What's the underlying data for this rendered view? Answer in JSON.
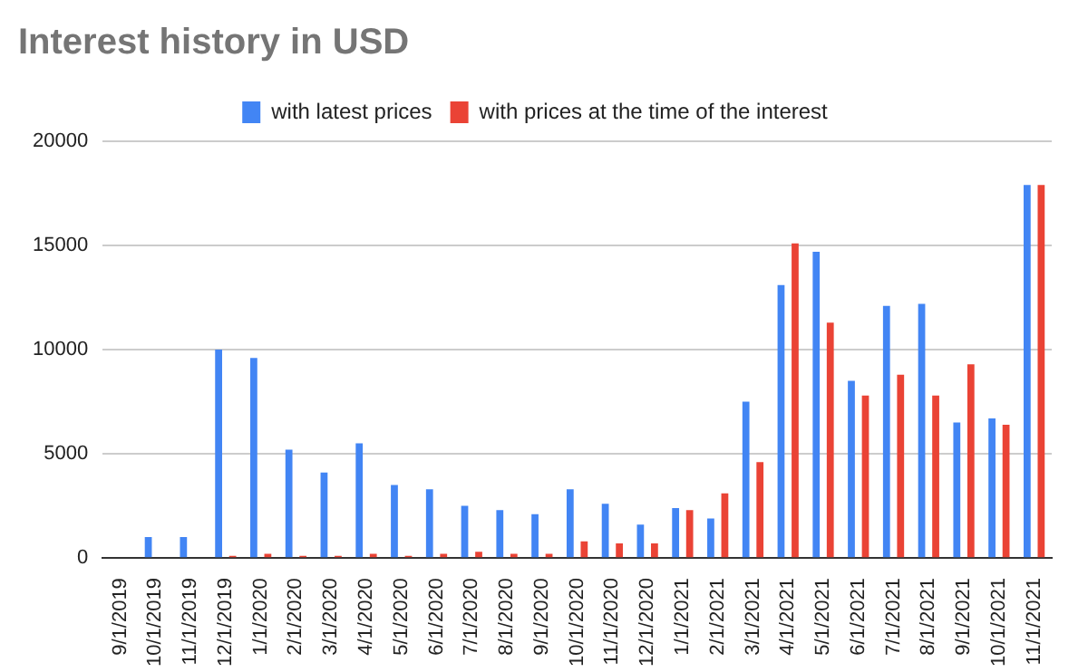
{
  "chart_data": {
    "type": "bar",
    "title": "Interest history in USD",
    "categories": [
      "9/1/2019",
      "10/1/2019",
      "11/1/2019",
      "12/1/2019",
      "1/1/2020",
      "2/1/2020",
      "3/1/2020",
      "4/1/2020",
      "5/1/2020",
      "6/1/2020",
      "7/1/2020",
      "8/1/2020",
      "9/1/2020",
      "10/1/2020",
      "11/1/2020",
      "12/1/2020",
      "1/1/2021",
      "2/1/2021",
      "3/1/2021",
      "4/1/2021",
      "5/1/2021",
      "6/1/2021",
      "7/1/2021",
      "8/1/2021",
      "9/1/2021",
      "10/1/2021",
      "11/1/2021"
    ],
    "series": [
      {
        "name": "with latest prices",
        "color": "#4285f4",
        "values": [
          0,
          1000,
          1000,
          10000,
          9600,
          5200,
          4100,
          5500,
          3500,
          3300,
          2500,
          2300,
          2100,
          3300,
          2600,
          1600,
          2400,
          1900,
          7500,
          13100,
          14700,
          8500,
          12100,
          12200,
          6500,
          6700,
          17900
        ]
      },
      {
        "name": "with prices at the time of the interest",
        "color": "#ea4335",
        "values": [
          0,
          0,
          0,
          100,
          200,
          100,
          100,
          200,
          100,
          200,
          300,
          200,
          200,
          800,
          700,
          700,
          2300,
          3100,
          4600,
          15100,
          11300,
          7800,
          8800,
          7800,
          9300,
          6400,
          17900
        ]
      }
    ],
    "ylim": [
      0,
      20000
    ],
    "yticks": [
      0,
      5000,
      10000,
      15000,
      20000
    ],
    "grid": "y",
    "legend": "top"
  }
}
